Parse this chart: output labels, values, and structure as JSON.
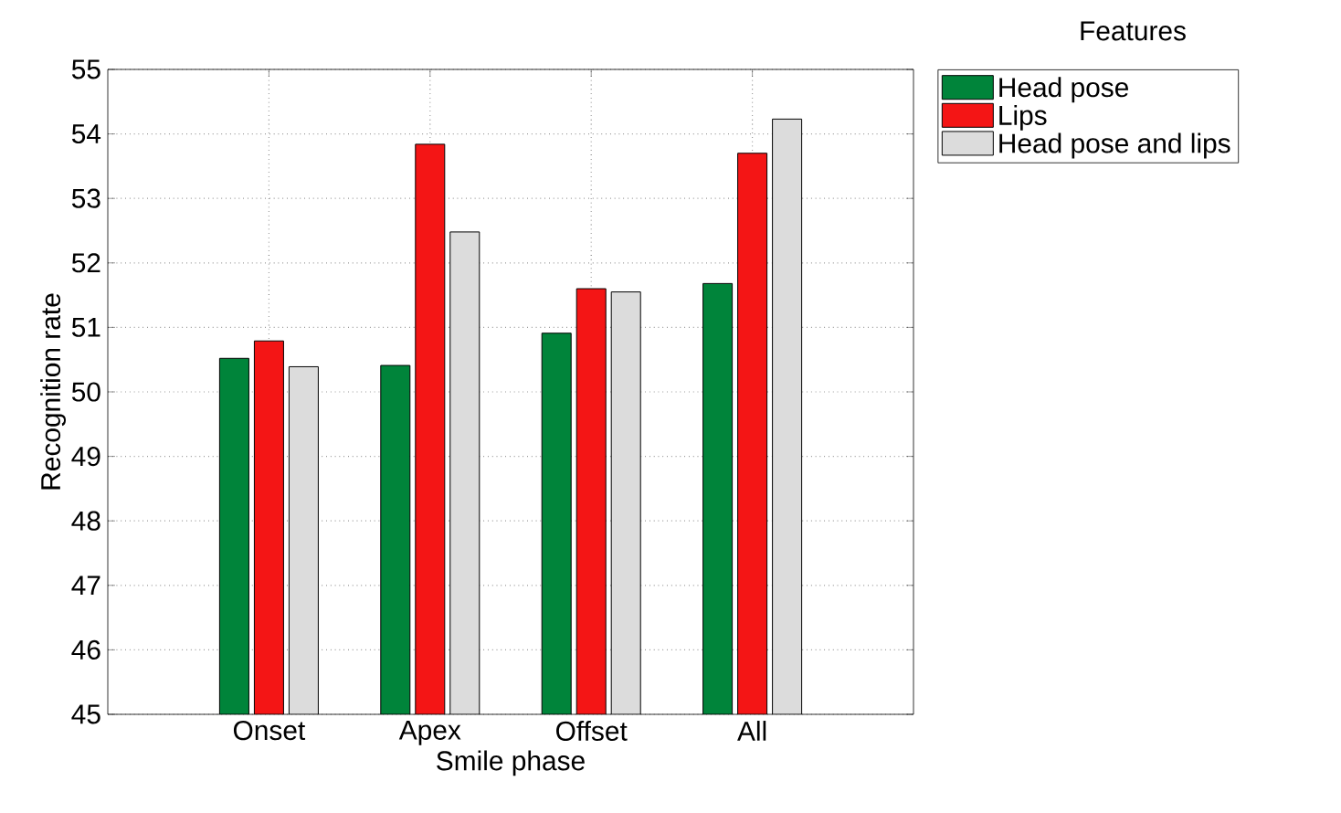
{
  "chart_data": {
    "type": "bar",
    "xlabel": "Smile phase",
    "ylabel": "Recognition rate",
    "legend_title": "Features",
    "categories": [
      "Onset",
      "Apex",
      "Offset",
      "All"
    ],
    "series": [
      {
        "name": "Head pose",
        "color": "#00843a",
        "values": [
          50.52,
          50.41,
          50.91,
          51.68
        ]
      },
      {
        "name": "Lips",
        "color": "#f41515",
        "values": [
          50.79,
          53.84,
          51.6,
          53.7
        ]
      },
      {
        "name": "Head pose and lips",
        "color": "#dcdcdc",
        "values": [
          50.39,
          52.48,
          51.55,
          54.23
        ]
      }
    ],
    "ylim": [
      45,
      55
    ],
    "yticks": [
      45,
      46,
      47,
      48,
      49,
      50,
      51,
      52,
      53,
      54,
      55
    ],
    "grid": true,
    "legend": "top right"
  }
}
